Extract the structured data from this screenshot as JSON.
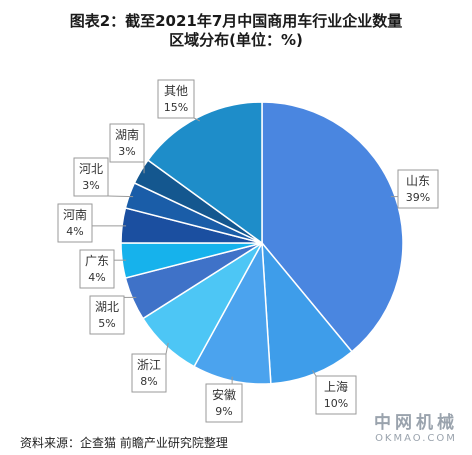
{
  "chart_data": {
    "type": "pie",
    "title_line1": "图表2：截至2021年7月中国商用车行业企业数量",
    "title_line2": "区域分布(单位：%)",
    "unit": "%",
    "slices": [
      {
        "label": "山东",
        "value": 39,
        "display": "39%",
        "color": "#4A86E0"
      },
      {
        "label": "上海",
        "value": 10,
        "display": "10%",
        "color": "#3E9DEA"
      },
      {
        "label": "安徽",
        "value": 9,
        "display": "9%",
        "color": "#4BA3EE"
      },
      {
        "label": "浙江",
        "value": 8,
        "display": "8%",
        "color": "#4DC6F5"
      },
      {
        "label": "湖北",
        "value": 5,
        "display": "5%",
        "color": "#3F72C8"
      },
      {
        "label": "广东",
        "value": 4,
        "display": "4%",
        "color": "#16B2EC"
      },
      {
        "label": "河南",
        "value": 4,
        "display": "4%",
        "color": "#1B4FA0"
      },
      {
        "label": "河北",
        "value": 3,
        "display": "3%",
        "color": "#1A5DA8"
      },
      {
        "label": "湖南",
        "value": 3,
        "display": "3%",
        "color": "#14578F"
      },
      {
        "label": "其他",
        "value": 15,
        "display": "15%",
        "color": "#1E8DC9"
      }
    ]
  },
  "source": {
    "prefix": "资料来源：企查猫 前瞻产业研究院整理"
  },
  "watermark": {
    "line1": "中网机械",
    "line2": "OKMAO.COM"
  }
}
